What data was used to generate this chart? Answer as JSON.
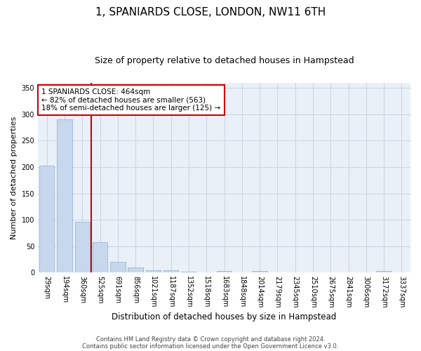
{
  "title": "1, SPANIARDS CLOSE, LONDON, NW11 6TH",
  "subtitle": "Size of property relative to detached houses in Hampstead",
  "xlabel": "Distribution of detached houses by size in Hampstead",
  "ylabel": "Number of detached properties",
  "categories": [
    "29sqm",
    "194sqm",
    "360sqm",
    "525sqm",
    "691sqm",
    "856sqm",
    "1021sqm",
    "1187sqm",
    "1352sqm",
    "1518sqm",
    "1683sqm",
    "1848sqm",
    "2014sqm",
    "2179sqm",
    "2345sqm",
    "2510sqm",
    "2675sqm",
    "2841sqm",
    "3006sqm",
    "3172sqm",
    "3337sqm"
  ],
  "values": [
    203,
    290,
    97,
    58,
    20,
    10,
    5,
    4,
    2,
    0,
    3,
    0,
    3,
    0,
    0,
    0,
    0,
    0,
    0,
    3,
    0
  ],
  "bar_color": "#c8d8ec",
  "bar_edge_color": "#89afd0",
  "vline_x_index": 2.5,
  "vline_color": "#cc0000",
  "annotation_text": "1 SPANIARDS CLOSE: 464sqm\n← 82% of detached houses are smaller (563)\n18% of semi-detached houses are larger (125) →",
  "annotation_box_color": "white",
  "annotation_box_edge_color": "#cc0000",
  "ylim": [
    0,
    360
  ],
  "yticks": [
    0,
    50,
    100,
    150,
    200,
    250,
    300,
    350
  ],
  "grid_color": "#c8d4e0",
  "background_color": "#eaf0f8",
  "footnote1": "Contains HM Land Registry data © Crown copyright and database right 2024.",
  "footnote2": "Contains public sector information licensed under the Open Government Licence v3.0.",
  "title_fontsize": 11,
  "subtitle_fontsize": 9,
  "xlabel_fontsize": 8.5,
  "ylabel_fontsize": 8,
  "tick_fontsize": 7,
  "annotation_fontsize": 7.5,
  "footnote_fontsize": 6
}
